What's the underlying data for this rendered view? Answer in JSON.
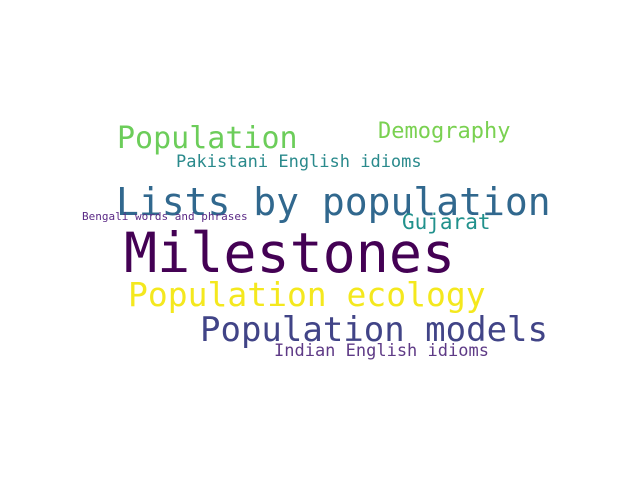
{
  "wordcloud": {
    "words": [
      {
        "id": "population",
        "text": "Population",
        "color": "#6ccd5a"
      },
      {
        "id": "demography",
        "text": "Demography",
        "color": "#7ad151"
      },
      {
        "id": "pakistani",
        "text": "Pakistani English idioms",
        "color": "#2a8a8c"
      },
      {
        "id": "lists",
        "text": "Lists by population",
        "color": "#31688e"
      },
      {
        "id": "gujarat",
        "text": "Gujarat",
        "color": "#21918c"
      },
      {
        "id": "bengali",
        "text": "Bengali words and phrases",
        "color": "#5b2a86"
      },
      {
        "id": "milestones",
        "text": "Milestones",
        "color": "#440154"
      },
      {
        "id": "pop_ecology",
        "text": "Population ecology",
        "color": "#f4e81e"
      },
      {
        "id": "pop_models",
        "text": "Population models",
        "color": "#414487"
      },
      {
        "id": "indian",
        "text": "Indian English idioms",
        "color": "#5e3a86"
      }
    ]
  }
}
